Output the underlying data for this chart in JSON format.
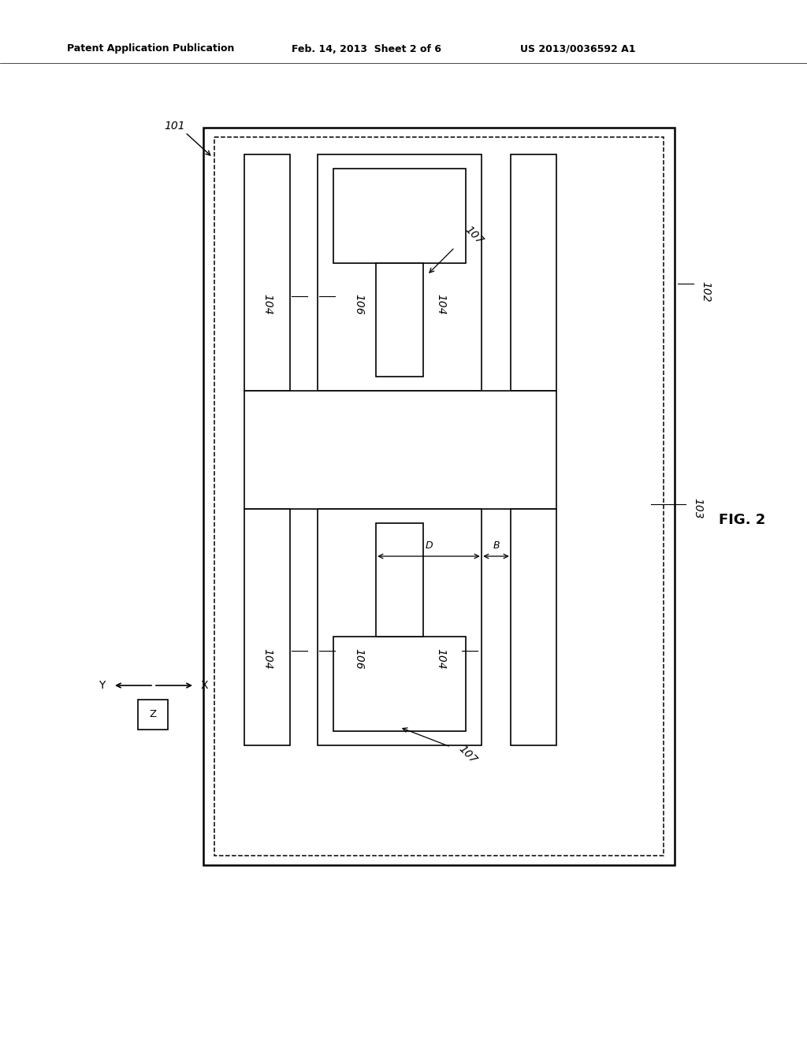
{
  "bg_color": "#ffffff",
  "line_color": "#000000",
  "header_left": "Patent Application Publication",
  "header_mid": "Feb. 14, 2013  Sheet 2 of 6",
  "header_right": "US 2013/0036592 A1",
  "fig_label": "FIG. 2",
  "lw_outer": 1.8,
  "lw_inner": 1.2,
  "lw_dashed": 1.1
}
